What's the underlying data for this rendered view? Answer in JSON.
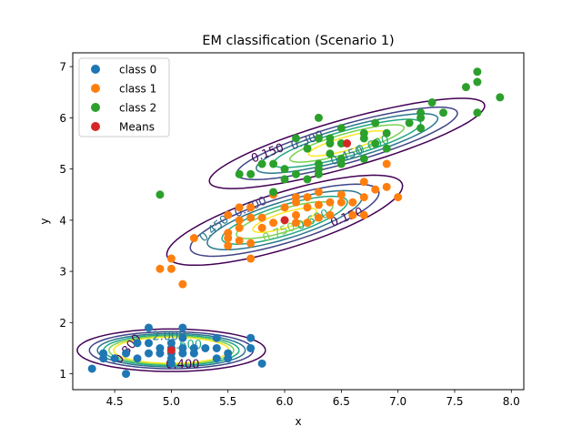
{
  "chart_data": {
    "type": "scatter",
    "title": "EM classification (Scenario 1)",
    "xlabel": "x",
    "ylabel": "y",
    "xlim": [
      4.13,
      8.11
    ],
    "ylim": [
      0.69,
      7.27
    ],
    "x_ticks": [
      "4.5",
      "5.0",
      "5.5",
      "6.0",
      "6.5",
      "7.0",
      "7.5",
      "8.0"
    ],
    "y_ticks": [
      "1",
      "2",
      "3",
      "4",
      "5",
      "6",
      "7"
    ],
    "grid": false,
    "legend_position": "top-left",
    "series": [
      {
        "name": "class 0",
        "color": "#1f77b4",
        "points": [
          [
            4.3,
            1.1
          ],
          [
            4.4,
            1.3
          ],
          [
            4.4,
            1.4
          ],
          [
            4.5,
            1.3
          ],
          [
            4.6,
            1.0
          ],
          [
            4.6,
            1.4
          ],
          [
            4.7,
            1.3
          ],
          [
            4.7,
            1.6
          ],
          [
            4.8,
            1.4
          ],
          [
            4.8,
            1.6
          ],
          [
            4.8,
            1.9
          ],
          [
            4.9,
            1.4
          ],
          [
            4.9,
            1.5
          ],
          [
            5.0,
            1.2
          ],
          [
            5.0,
            1.3
          ],
          [
            5.0,
            1.4
          ],
          [
            5.0,
            1.5
          ],
          [
            5.0,
            1.6
          ],
          [
            5.1,
            1.4
          ],
          [
            5.1,
            1.5
          ],
          [
            5.1,
            1.7
          ],
          [
            5.1,
            1.9
          ],
          [
            5.2,
            1.4
          ],
          [
            5.2,
            1.5
          ],
          [
            5.3,
            1.5
          ],
          [
            5.4,
            1.3
          ],
          [
            5.4,
            1.5
          ],
          [
            5.4,
            1.7
          ],
          [
            5.5,
            1.3
          ],
          [
            5.5,
            1.4
          ],
          [
            5.7,
            1.5
          ],
          [
            5.7,
            1.7
          ],
          [
            5.8,
            1.2
          ]
        ]
      },
      {
        "name": "class 1",
        "color": "#ff7f0e",
        "points": [
          [
            4.9,
            3.05
          ],
          [
            5.0,
            3.05
          ],
          [
            5.0,
            3.25
          ],
          [
            5.1,
            2.75
          ],
          [
            5.2,
            3.65
          ],
          [
            5.5,
            3.5
          ],
          [
            5.5,
            3.65
          ],
          [
            5.5,
            3.75
          ],
          [
            5.5,
            4.1
          ],
          [
            5.6,
            3.6
          ],
          [
            5.6,
            3.85
          ],
          [
            5.6,
            4.0
          ],
          [
            5.6,
            4.25
          ],
          [
            5.7,
            3.25
          ],
          [
            5.7,
            3.55
          ],
          [
            5.7,
            4.05
          ],
          [
            5.7,
            4.25
          ],
          [
            5.8,
            3.85
          ],
          [
            5.8,
            4.05
          ],
          [
            5.9,
            3.95
          ],
          [
            5.9,
            4.5
          ],
          [
            6.0,
            4.0
          ],
          [
            6.0,
            4.25
          ],
          [
            6.1,
            3.95
          ],
          [
            6.1,
            4.1
          ],
          [
            6.1,
            4.35
          ],
          [
            6.1,
            4.45
          ],
          [
            6.2,
            3.95
          ],
          [
            6.2,
            4.25
          ],
          [
            6.2,
            4.45
          ],
          [
            6.3,
            4.05
          ],
          [
            6.3,
            4.3
          ],
          [
            6.3,
            4.55
          ],
          [
            6.4,
            4.1
          ],
          [
            6.4,
            4.35
          ],
          [
            6.5,
            4.35
          ],
          [
            6.5,
            4.5
          ],
          [
            6.6,
            4.1
          ],
          [
            6.6,
            4.35
          ],
          [
            6.7,
            4.1
          ],
          [
            6.7,
            4.45
          ],
          [
            6.7,
            4.75
          ],
          [
            6.8,
            4.6
          ],
          [
            6.9,
            4.65
          ],
          [
            6.9,
            5.1
          ],
          [
            7.0,
            4.45
          ]
        ]
      },
      {
        "name": "class 2",
        "color": "#2ca02c",
        "points": [
          [
            4.9,
            4.5
          ],
          [
            5.6,
            4.9
          ],
          [
            5.8,
            5.1
          ],
          [
            5.7,
            4.9
          ],
          [
            5.9,
            4.55
          ],
          [
            5.9,
            5.1
          ],
          [
            6.0,
            4.8
          ],
          [
            6.0,
            5.0
          ],
          [
            6.1,
            4.9
          ],
          [
            6.1,
            5.6
          ],
          [
            6.2,
            4.8
          ],
          [
            6.2,
            5.4
          ],
          [
            6.3,
            4.9
          ],
          [
            6.3,
            5.0
          ],
          [
            6.3,
            5.1
          ],
          [
            6.3,
            5.6
          ],
          [
            6.3,
            6.0
          ],
          [
            6.4,
            5.3
          ],
          [
            6.4,
            5.5
          ],
          [
            6.4,
            5.6
          ],
          [
            6.5,
            5.1
          ],
          [
            6.5,
            5.2
          ],
          [
            6.5,
            5.5
          ],
          [
            6.5,
            5.8
          ],
          [
            6.7,
            5.2
          ],
          [
            6.7,
            5.6
          ],
          [
            6.7,
            5.7
          ],
          [
            6.8,
            5.5
          ],
          [
            6.8,
            5.9
          ],
          [
            6.9,
            5.4
          ],
          [
            6.9,
            5.7
          ],
          [
            7.1,
            5.9
          ],
          [
            7.2,
            5.8
          ],
          [
            7.2,
            6.0
          ],
          [
            7.2,
            6.1
          ],
          [
            7.3,
            6.3
          ],
          [
            7.4,
            6.1
          ],
          [
            7.6,
            6.6
          ],
          [
            7.7,
            6.1
          ],
          [
            7.7,
            6.7
          ],
          [
            7.7,
            6.9
          ],
          [
            7.9,
            6.4
          ]
        ]
      },
      {
        "name": "Means",
        "color": "#d62728",
        "points": [
          [
            5.0,
            1.46
          ],
          [
            6.0,
            4.0
          ],
          [
            6.55,
            5.5
          ]
        ]
      }
    ],
    "contour_levels": [
      0.15,
      0.3,
      0.45,
      0.6,
      0.75,
      0.9
    ],
    "contour_colors": [
      "#440154",
      "#414487",
      "#2a788e",
      "#22a884",
      "#7ad151",
      "#fde725"
    ],
    "components": [
      {
        "mean": [
          5.0,
          1.46
        ],
        "cov": [
          [
            0.12,
            0.0
          ],
          [
            0.0,
            0.03
          ]
        ]
      },
      {
        "mean": [
          6.0,
          4.0
        ],
        "cov": [
          [
            0.28,
            0.18
          ],
          [
            0.18,
            0.2
          ]
        ]
      },
      {
        "mean": [
          6.55,
          5.5
        ],
        "cov": [
          [
            0.38,
            0.23
          ],
          [
            0.23,
            0.2
          ]
        ]
      }
    ],
    "contour_labels": [
      {
        "text": "0.150",
        "x": 5.85,
        "y": 5.3,
        "angle": -21,
        "color": "#440154"
      },
      {
        "text": "0.300",
        "x": 6.2,
        "y": 5.55,
        "angle": -21,
        "color": "#414487"
      },
      {
        "text": "0.450",
        "x": 6.55,
        "y": 5.25,
        "angle": -21,
        "color": "#2a788e"
      },
      {
        "text": "0.600",
        "x": 6.78,
        "y": 5.46,
        "angle": -21,
        "color": "#22a884"
      },
      {
        "text": "0.150",
        "x": 6.55,
        "y": 4.05,
        "angle": -21,
        "color": "#440154"
      },
      {
        "text": "0.300",
        "x": 5.7,
        "y": 4.25,
        "angle": -24,
        "color": "#414487"
      },
      {
        "text": "0.450",
        "x": 5.38,
        "y": 3.83,
        "angle": -40,
        "color": "#2a788e"
      },
      {
        "text": "0.600",
        "x": 6.25,
        "y": 4.0,
        "angle": -24,
        "color": "#22a884"
      },
      {
        "text": "0.750",
        "x": 5.95,
        "y": 3.75,
        "angle": -22,
        "color": "#7ad151"
      },
      {
        "text": "0.800",
        "x": 4.62,
        "y": 1.48,
        "angle": -50,
        "color": "#440154"
      },
      {
        "text": "0.400",
        "x": 5.1,
        "y": 1.17,
        "angle": 0,
        "color": "#440154"
      },
      {
        "text": "2.000",
        "x": 4.98,
        "y": 1.72,
        "angle": 0,
        "color": "#2a788e"
      },
      {
        "text": "1.600",
        "x": 5.12,
        "y": 1.55,
        "angle": 0,
        "color": "#22a884"
      }
    ]
  }
}
